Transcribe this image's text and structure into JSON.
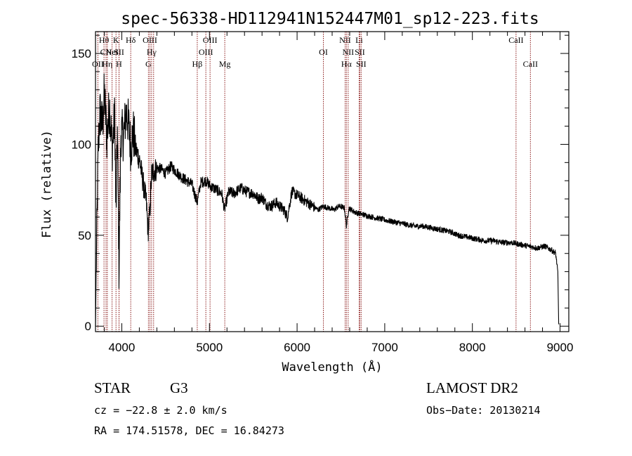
{
  "chart_data": {
    "type": "line",
    "title": "spec-56338-HD112941N152447M01_sp12-223.fits",
    "xlabel": "Wavelength (Å)",
    "ylabel": "Flux (relative)",
    "xlim": [
      3700,
      9100
    ],
    "ylim": [
      -3,
      162
    ],
    "xticks": [
      "4000",
      "5000",
      "6000",
      "7000",
      "8000",
      "9000"
    ],
    "yticks": [
      "0",
      "50",
      "100",
      "150"
    ],
    "grid": false,
    "spectrum_anchors": [
      [
        3700,
        0
      ],
      [
        3712,
        42
      ],
      [
        3730,
        95
      ],
      [
        3750,
        118
      ],
      [
        3780,
        110
      ],
      [
        3800,
        128
      ],
      [
        3830,
        104
      ],
      [
        3860,
        122
      ],
      [
        3890,
        97
      ],
      [
        3920,
        116
      ],
      [
        3933,
        58
      ],
      [
        3950,
        108
      ],
      [
        3968,
        30
      ],
      [
        3990,
        107
      ],
      [
        4020,
        104
      ],
      [
        4050,
        118
      ],
      [
        4080,
        110
      ],
      [
        4102,
        98
      ],
      [
        4130,
        107
      ],
      [
        4160,
        97
      ],
      [
        4200,
        92
      ],
      [
        4240,
        80
      ],
      [
        4280,
        68
      ],
      [
        4300,
        52
      ],
      [
        4320,
        62
      ],
      [
        4340,
        84
      ],
      [
        4380,
        86
      ],
      [
        4420,
        87
      ],
      [
        4460,
        86
      ],
      [
        4500,
        84
      ],
      [
        4560,
        88
      ],
      [
        4620,
        85
      ],
      [
        4680,
        82
      ],
      [
        4740,
        80
      ],
      [
        4800,
        78
      ],
      [
        4861,
        68
      ],
      [
        4900,
        79
      ],
      [
        4960,
        80
      ],
      [
        5010,
        77
      ],
      [
        5080,
        75
      ],
      [
        5140,
        73
      ],
      [
        5172,
        64
      ],
      [
        5220,
        74
      ],
      [
        5280,
        73
      ],
      [
        5360,
        76
      ],
      [
        5420,
        74
      ],
      [
        5500,
        73
      ],
      [
        5560,
        70
      ],
      [
        5600,
        71
      ],
      [
        5650,
        67
      ],
      [
        5700,
        66
      ],
      [
        5760,
        68
      ],
      [
        5800,
        66
      ],
      [
        5850,
        64
      ],
      [
        5890,
        60
      ],
      [
        5940,
        74
      ],
      [
        6000,
        72
      ],
      [
        6060,
        70
      ],
      [
        6120,
        68
      ],
      [
        6180,
        66
      ],
      [
        6240,
        64
      ],
      [
        6300,
        66
      ],
      [
        6360,
        65
      ],
      [
        6420,
        64
      ],
      [
        6480,
        66
      ],
      [
        6540,
        65
      ],
      [
        6563,
        55
      ],
      [
        6590,
        65
      ],
      [
        6650,
        63
      ],
      [
        6700,
        62
      ],
      [
        6780,
        61
      ],
      [
        6860,
        60
      ],
      [
        6950,
        59
      ],
      [
        7040,
        58
      ],
      [
        7140,
        57
      ],
      [
        7240,
        56
      ],
      [
        7340,
        55
      ],
      [
        7440,
        55
      ],
      [
        7540,
        54
      ],
      [
        7640,
        53
      ],
      [
        7740,
        52
      ],
      [
        7840,
        50
      ],
      [
        7940,
        49
      ],
      [
        8040,
        48
      ],
      [
        8140,
        47
      ],
      [
        8240,
        47
      ],
      [
        8340,
        46
      ],
      [
        8440,
        46
      ],
      [
        8540,
        45
      ],
      [
        8640,
        44
      ],
      [
        8740,
        43
      ],
      [
        8820,
        44
      ],
      [
        8900,
        42
      ],
      [
        8950,
        40
      ],
      [
        8975,
        30
      ],
      [
        8985,
        1
      ]
    ],
    "spectral_lines": [
      {
        "label": "OII",
        "wavelength": 3727,
        "row": 3
      },
      {
        "label": "Hθ",
        "wavelength": 3797,
        "row": 1
      },
      {
        "label": "CN",
        "wavelength": 3820,
        "row": 2
      },
      {
        "label": "Hη",
        "wavelength": 3835,
        "row": 3
      },
      {
        "label": "HeI",
        "wavelength": 3889,
        "row": 2
      },
      {
        "label": "K",
        "wavelength": 3934,
        "row": 1
      },
      {
        "label": "SII",
        "wavelength": 3969,
        "row": 2
      },
      {
        "label": "H",
        "wavelength": 3968,
        "row": 3
      },
      {
        "label": "Hδ",
        "wavelength": 4102,
        "row": 1
      },
      {
        "label": "G",
        "wavelength": 4304,
        "row": 3
      },
      {
        "label": "OIII",
        "wavelength": 4321,
        "row": 1
      },
      {
        "label": "Hγ",
        "wavelength": 4340,
        "row": 2
      },
      {
        "label": "",
        "wavelength": 4363,
        "row": 0
      },
      {
        "label": "Hβ",
        "wavelength": 4861,
        "row": 3
      },
      {
        "label": "OIII",
        "wavelength": 4959,
        "row": 2
      },
      {
        "label": "OIII",
        "wavelength": 5007,
        "row": 1
      },
      {
        "label": "Mg",
        "wavelength": 5175,
        "row": 3
      },
      {
        "label": "OI",
        "wavelength": 6300,
        "row": 2
      },
      {
        "label": "NII",
        "wavelength": 6548,
        "row": 1
      },
      {
        "label": "Hα",
        "wavelength": 6563,
        "row": 3
      },
      {
        "label": "NII",
        "wavelength": 6583,
        "row": 2
      },
      {
        "label": "Li",
        "wavelength": 6708,
        "row": 1
      },
      {
        "label": "SII",
        "wavelength": 6716,
        "row": 2
      },
      {
        "label": "SII",
        "wavelength": 6731,
        "row": 3
      },
      {
        "label": "CaII",
        "wavelength": 8498,
        "row": 1
      },
      {
        "label": "CaII",
        "wavelength": 8662,
        "row": 3
      }
    ]
  },
  "info": {
    "object_class": "STAR",
    "subclass": "G3",
    "survey": "LAMOST DR2",
    "cz": "cz = −22.8 ± 2.0 km/s",
    "obs_date": "Obs−Date: 20130214",
    "coords": "RA = 174.51578, DEC =  16.84273"
  },
  "colors": {
    "line_marker": "#8b1a1a",
    "spectrum": "#000000"
  }
}
